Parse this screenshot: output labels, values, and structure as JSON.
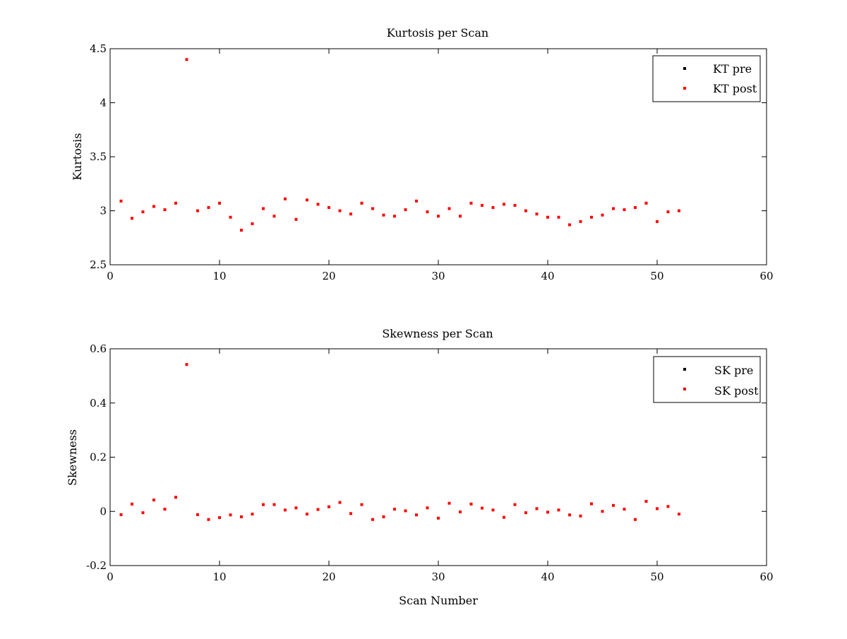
{
  "colors": {
    "pre": "#000000",
    "post": "#ff0000",
    "axes": "#000000",
    "background": "#ffffff"
  },
  "chart_data": [
    {
      "type": "scatter",
      "title": "Kurtosis per Scan",
      "xlabel": "",
      "ylabel": "Kurtosis",
      "xlim": [
        0,
        60
      ],
      "ylim": [
        2.5,
        4.5
      ],
      "xticks": [
        "0",
        "10",
        "20",
        "30",
        "40",
        "50",
        "60"
      ],
      "yticks": [
        "2.5",
        "3",
        "3.5",
        "4",
        "4.5"
      ],
      "grid": false,
      "legend_position": "top-right",
      "series": [
        {
          "name": "KT pre",
          "color": "#000000",
          "x": [],
          "y": []
        },
        {
          "name": "KT post",
          "color": "#ff0000",
          "x": [
            1,
            2,
            3,
            4,
            5,
            6,
            7,
            8,
            9,
            10,
            11,
            12,
            13,
            14,
            15,
            16,
            17,
            18,
            19,
            20,
            21,
            22,
            23,
            24,
            25,
            26,
            27,
            28,
            29,
            30,
            31,
            32,
            33,
            34,
            35,
            36,
            37,
            38,
            39,
            40,
            41,
            42,
            43,
            44,
            45,
            46,
            47,
            48,
            49,
            50,
            51,
            52
          ],
          "y": [
            3.09,
            2.93,
            2.99,
            3.04,
            3.01,
            3.07,
            4.4,
            3.0,
            3.03,
            3.07,
            2.94,
            2.82,
            2.88,
            3.02,
            2.95,
            3.11,
            2.92,
            3.1,
            3.06,
            3.03,
            3.0,
            2.97,
            3.07,
            3.02,
            2.96,
            2.95,
            3.01,
            3.09,
            2.99,
            2.95,
            3.02,
            2.95,
            3.07,
            3.05,
            3.03,
            3.06,
            3.05,
            3.0,
            2.97,
            2.94,
            2.94,
            2.87,
            2.9,
            2.94,
            2.96,
            3.02,
            3.01,
            3.03,
            3.07,
            2.9,
            2.99,
            3.0
          ]
        }
      ]
    },
    {
      "type": "scatter",
      "title": "Skewness per Scan",
      "xlabel": "Scan Number",
      "ylabel": "Skewness",
      "xlim": [
        0,
        60
      ],
      "ylim": [
        -0.2,
        0.6
      ],
      "xticks": [
        "0",
        "10",
        "20",
        "30",
        "40",
        "50",
        "60"
      ],
      "yticks": [
        "-0.2",
        "0",
        "0.2",
        "0.4",
        "0.6"
      ],
      "grid": false,
      "legend_position": "top-right",
      "series": [
        {
          "name": "SK pre",
          "color": "#000000",
          "x": [],
          "y": []
        },
        {
          "name": "SK post",
          "color": "#ff0000",
          "x": [
            1,
            2,
            3,
            4,
            5,
            6,
            7,
            8,
            9,
            10,
            11,
            12,
            13,
            14,
            15,
            16,
            17,
            18,
            19,
            20,
            21,
            22,
            23,
            24,
            25,
            26,
            27,
            28,
            29,
            30,
            31,
            32,
            33,
            34,
            35,
            36,
            37,
            38,
            39,
            40,
            41,
            42,
            43,
            44,
            45,
            46,
            47,
            48,
            49,
            50,
            51,
            52
          ],
          "y": [
            -0.012,
            0.027,
            -0.005,
            0.042,
            0.008,
            0.052,
            0.542,
            -0.012,
            -0.03,
            -0.023,
            -0.013,
            -0.02,
            -0.01,
            0.025,
            0.025,
            0.005,
            0.013,
            -0.01,
            0.007,
            0.017,
            0.033,
            -0.008,
            0.025,
            -0.03,
            -0.02,
            0.008,
            0.002,
            -0.013,
            0.013,
            -0.025,
            0.03,
            -0.002,
            0.027,
            0.012,
            0.005,
            -0.022,
            0.025,
            -0.005,
            0.01,
            -0.003,
            0.005,
            -0.013,
            -0.017,
            0.028,
            0.0,
            0.022,
            0.008,
            -0.03,
            0.037,
            0.01,
            0.018,
            -0.01
          ]
        }
      ]
    }
  ]
}
